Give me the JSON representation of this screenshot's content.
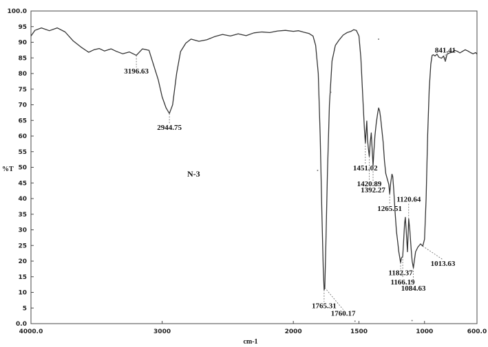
{
  "chart_data": {
    "type": "line",
    "xlabel": "cm-1",
    "ylabel": "%T",
    "annotation": "N-3",
    "xlim": [
      4000.0,
      600.0
    ],
    "ylim": [
      0.0,
      100.0
    ],
    "x_ticks": [
      {
        "value": 4000,
        "label": "4000.0"
      },
      {
        "value": 3000,
        "label": "3000"
      },
      {
        "value": 2000,
        "label": "2000"
      },
      {
        "value": 1500,
        "label": "1500"
      },
      {
        "value": 1000,
        "label": "1000"
      },
      {
        "value": 600,
        "label": "600.0"
      }
    ],
    "y_ticks": [
      {
        "value": 0,
        "label": "0.0"
      },
      {
        "value": 5,
        "label": "5"
      },
      {
        "value": 10,
        "label": "10"
      },
      {
        "value": 15,
        "label": "15"
      },
      {
        "value": 20,
        "label": "20"
      },
      {
        "value": 25,
        "label": "25"
      },
      {
        "value": 30,
        "label": "30"
      },
      {
        "value": 35,
        "label": "35"
      },
      {
        "value": 40,
        "label": "40"
      },
      {
        "value": 45,
        "label": "45"
      },
      {
        "value": 50,
        "label": "50"
      },
      {
        "value": 55,
        "label": "55"
      },
      {
        "value": 60,
        "label": "60"
      },
      {
        "value": 65,
        "label": "65"
      },
      {
        "value": 70,
        "label": "70"
      },
      {
        "value": 75,
        "label": "75"
      },
      {
        "value": 80,
        "label": "80"
      },
      {
        "value": 85,
        "label": "85"
      },
      {
        "value": 90,
        "label": "90"
      },
      {
        "value": 95,
        "label": "95"
      },
      {
        "value": 100,
        "label": "100.0"
      }
    ],
    "grid": false,
    "series": [
      {
        "points": [
          [
            4000,
            92
          ],
          [
            3970,
            93.8
          ],
          [
            3920,
            94.6
          ],
          [
            3860,
            93.7
          ],
          [
            3800,
            94.6
          ],
          [
            3740,
            93.3
          ],
          [
            3680,
            90.5
          ],
          [
            3620,
            88.5
          ],
          [
            3560,
            86.8
          ],
          [
            3520,
            87.6
          ],
          [
            3480,
            88
          ],
          [
            3440,
            87.2
          ],
          [
            3390,
            87.9
          ],
          [
            3350,
            87.1
          ],
          [
            3300,
            86.3
          ],
          [
            3250,
            86.9
          ],
          [
            3196.63,
            85.8
          ],
          [
            3150,
            87.9
          ],
          [
            3100,
            87.4
          ],
          [
            3060,
            82
          ],
          [
            3030,
            78
          ],
          [
            3000,
            72.5
          ],
          [
            2970,
            69
          ],
          [
            2944.75,
            67.2
          ],
          [
            2920,
            70
          ],
          [
            2890,
            80
          ],
          [
            2860,
            87
          ],
          [
            2820,
            89.7
          ],
          [
            2780,
            91
          ],
          [
            2720,
            90.3
          ],
          [
            2660,
            90.8
          ],
          [
            2600,
            91.8
          ],
          [
            2540,
            92.5
          ],
          [
            2480,
            92
          ],
          [
            2420,
            92.7
          ],
          [
            2360,
            92.1
          ],
          [
            2300,
            93
          ],
          [
            2240,
            93.3
          ],
          [
            2180,
            93.1
          ],
          [
            2120,
            93.6
          ],
          [
            2060,
            93.8
          ],
          [
            2000,
            93.5
          ],
          [
            1960,
            93.7
          ],
          [
            1920,
            93.2
          ],
          [
            1880,
            92.8
          ],
          [
            1850,
            92
          ],
          [
            1830,
            89
          ],
          [
            1810,
            80
          ],
          [
            1795,
            60
          ],
          [
            1782,
            35
          ],
          [
            1772,
            18
          ],
          [
            1765.31,
            10.8
          ],
          [
            1760.17,
            11.5
          ],
          [
            1752,
            25
          ],
          [
            1740,
            48
          ],
          [
            1725,
            70
          ],
          [
            1705,
            84
          ],
          [
            1680,
            89
          ],
          [
            1650,
            90.8
          ],
          [
            1620,
            92.3
          ],
          [
            1590,
            93.1
          ],
          [
            1560,
            93.5
          ],
          [
            1540,
            94
          ],
          [
            1520,
            93.8
          ],
          [
            1500,
            92
          ],
          [
            1485,
            85
          ],
          [
            1470,
            72
          ],
          [
            1458,
            62
          ],
          [
            1451.02,
            57.8
          ],
          [
            1445,
            62
          ],
          [
            1440,
            64.8
          ],
          [
            1435,
            59
          ],
          [
            1428,
            56
          ],
          [
            1420.89,
            53.5
          ],
          [
            1414,
            58
          ],
          [
            1406,
            61
          ],
          [
            1398,
            55
          ],
          [
            1392.27,
            50.5
          ],
          [
            1386,
            55
          ],
          [
            1378,
            60
          ],
          [
            1368,
            64
          ],
          [
            1358,
            67
          ],
          [
            1350,
            69
          ],
          [
            1342,
            68
          ],
          [
            1335,
            66
          ],
          [
            1325,
            62
          ],
          [
            1315,
            58
          ],
          [
            1305,
            52
          ],
          [
            1295,
            48
          ],
          [
            1282,
            46
          ],
          [
            1272,
            44.5
          ],
          [
            1265.51,
            41.5
          ],
          [
            1258,
            45
          ],
          [
            1248,
            47.8
          ],
          [
            1242,
            47
          ],
          [
            1235,
            43
          ],
          [
            1225,
            36
          ],
          [
            1214,
            29.5
          ],
          [
            1204,
            26
          ],
          [
            1196,
            23
          ],
          [
            1188,
            21
          ],
          [
            1182.37,
            19.5
          ],
          [
            1176,
            21
          ],
          [
            1166.19,
            21.5
          ],
          [
            1160,
            26
          ],
          [
            1152,
            32
          ],
          [
            1146,
            34
          ],
          [
            1140,
            30
          ],
          [
            1130,
            23
          ],
          [
            1120.64,
            33.5
          ],
          [
            1112,
            30
          ],
          [
            1102,
            24
          ],
          [
            1094,
            20
          ],
          [
            1084.63,
            17.8
          ],
          [
            1078,
            20
          ],
          [
            1068,
            23
          ],
          [
            1050,
            24.5
          ],
          [
            1030,
            25.5
          ],
          [
            1013.63,
            24.8
          ],
          [
            1000,
            27
          ],
          [
            988,
            40
          ],
          [
            976,
            60
          ],
          [
            964,
            75
          ],
          [
            952,
            83
          ],
          [
            942,
            85.8
          ],
          [
            932,
            86
          ],
          [
            920,
            85.6
          ],
          [
            905,
            86.2
          ],
          [
            890,
            85.2
          ],
          [
            870,
            84.9
          ],
          [
            855,
            85.6
          ],
          [
            841.41,
            83.9
          ],
          [
            828,
            86.2
          ],
          [
            810,
            86.6
          ],
          [
            790,
            86.8
          ],
          [
            770,
            87.4
          ],
          [
            750,
            87.1
          ],
          [
            730,
            86.6
          ],
          [
            710,
            87.1
          ],
          [
            690,
            87.6
          ],
          [
            670,
            87.2
          ],
          [
            650,
            86.7
          ],
          [
            630,
            86.3
          ],
          [
            610,
            86.7
          ],
          [
            600,
            86.2
          ]
        ]
      }
    ],
    "peak_annotations": [
      {
        "x": 3196.63,
        "y": 85.8,
        "label": "3196.63",
        "lx": 3196.63,
        "ly": 80
      },
      {
        "x": 2944.75,
        "y": 67.2,
        "label": "2944.75",
        "lx": 2944.75,
        "ly": 62
      },
      {
        "x": 1765.31,
        "y": 10.8,
        "label": "1765.31",
        "lx": 1765.31,
        "ly": 5
      },
      {
        "x": 1760.17,
        "y": 11.5,
        "label": "1760.17",
        "lx": 1620,
        "ly": 2.5
      },
      {
        "x": 1451.02,
        "y": 57.8,
        "label": "1451.02",
        "lx": 1451.02,
        "ly": 49
      },
      {
        "x": 1420.89,
        "y": 53.5,
        "label": "1420.89",
        "lx": 1420.89,
        "ly": 44
      },
      {
        "x": 1392.27,
        "y": 50.5,
        "label": "1392.27",
        "lx": 1392.27,
        "ly": 42
      },
      {
        "x": 1265.51,
        "y": 41.5,
        "label": "1265.51",
        "lx": 1265.51,
        "ly": 36
      },
      {
        "x": 1182.37,
        "y": 19.5,
        "label": "1182.37",
        "lx": 1182.37,
        "ly": 15.5
      },
      {
        "x": 1166.19,
        "y": 21.5,
        "label": "1166.19",
        "lx": 1166.19,
        "ly": 12.5
      },
      {
        "x": 1120.64,
        "y": 33.5,
        "label": "1120.64",
        "lx": 1120.64,
        "ly": 39
      },
      {
        "x": 1084.63,
        "y": 17.8,
        "label": "1084.63",
        "lx": 1084.63,
        "ly": 10.5
      },
      {
        "x": 1013.63,
        "y": 24.8,
        "label": "1013.63",
        "lx": 860,
        "ly": 18.5
      },
      {
        "x": 841.41,
        "y": 83.9,
        "label": "841.41",
        "lx": 841.41,
        "ly": 86.7
      }
    ],
    "stray_dots": [
      {
        "x": 1815,
        "y": 49
      },
      {
        "x": 1715,
        "y": 74
      },
      {
        "x": 1350,
        "y": 91
      },
      {
        "x": 1095,
        "y": 1
      },
      {
        "x": 1530,
        "y": 0.8
      }
    ],
    "line_color": "#333333"
  }
}
